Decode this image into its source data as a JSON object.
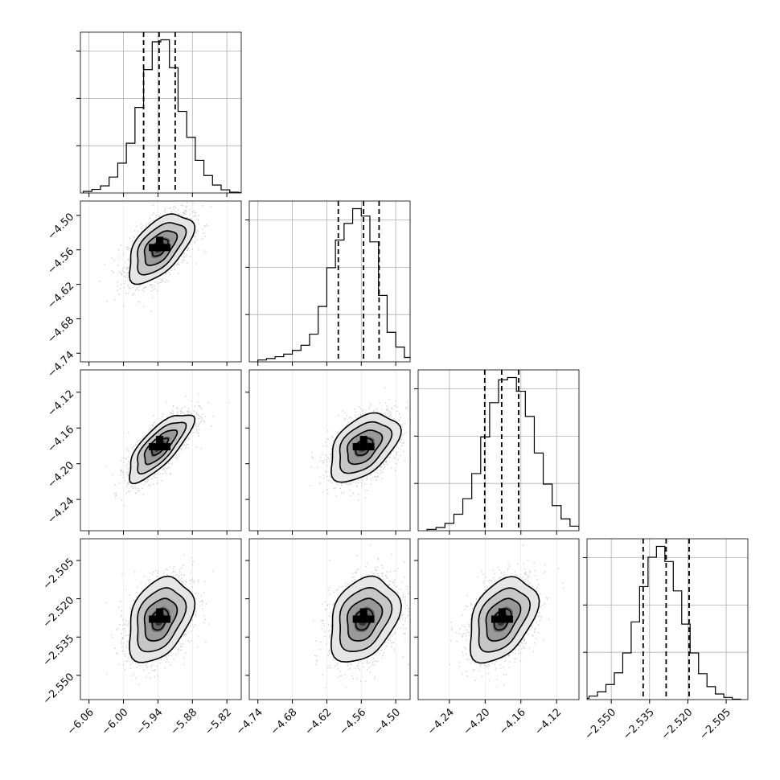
{
  "chart_data": {
    "type": "corner",
    "title": "",
    "grid": true,
    "parameters": [
      {
        "range": [
          -6.075,
          -5.795
        ],
        "ticks": [
          -6.06,
          -6.0,
          -5.94,
          -5.88,
          -5.82
        ],
        "tick_labels": [
          "−6.06",
          "−6.00",
          "−5.94",
          "−5.88",
          "−5.82"
        ],
        "quantiles": [
          -5.965,
          -5.938,
          -5.91
        ],
        "center": -5.937,
        "sigma": 0.028,
        "bins": 19,
        "hist_edges": [
          -6.07,
          -6.055,
          -6.04,
          -6.025,
          -6.01,
          -5.995,
          -5.98,
          -5.965,
          -5.95,
          -5.935,
          -5.92,
          -5.905,
          -5.89,
          -5.875,
          -5.86,
          -5.845,
          -5.83,
          -5.815,
          -5.8,
          -5.785
        ],
        "hist_counts": [
          4,
          9,
          18,
          40,
          75,
          125,
          215,
          310,
          380,
          385,
          315,
          205,
          140,
          82,
          44,
          20,
          8,
          2,
          1
        ]
      },
      {
        "range": [
          -4.755,
          -4.475
        ],
        "ticks": [
          -4.74,
          -4.68,
          -4.62,
          -4.56,
          -4.5
        ],
        "tick_labels": [
          "−4.74",
          "−4.68",
          "−4.62",
          "−4.56",
          "−4.50"
        ],
        "quantiles": [
          -4.6,
          -4.556,
          -4.529
        ],
        "center": -4.556,
        "sigma": 0.03,
        "bins": 19,
        "hist_edges": [
          -4.74,
          -4.725,
          -4.71,
          -4.695,
          -4.68,
          -4.665,
          -4.65,
          -4.635,
          -4.62,
          -4.605,
          -4.59,
          -4.575,
          -4.56,
          -4.545,
          -4.53,
          -4.515,
          -4.5,
          -4.485,
          -4.47,
          -4.455
        ],
        "hist_counts": [
          5,
          9,
          14,
          21,
          31,
          45,
          75,
          150,
          255,
          330,
          375,
          415,
          395,
          325,
          180,
          80,
          40,
          12,
          4
        ]
      },
      {
        "range": [
          -4.275,
          -4.095
        ],
        "ticks": [
          -4.24,
          -4.2,
          -4.16,
          -4.12
        ],
        "tick_labels": [
          "−4.24",
          "−4.20",
          "−4.16",
          "−4.12"
        ],
        "quantiles": [
          -4.2005,
          -4.1815,
          -4.1625
        ],
        "center": -4.181,
        "sigma": 0.019,
        "bins": 19,
        "hist_edges": [
          -4.265,
          -4.255,
          -4.245,
          -4.235,
          -4.225,
          -4.215,
          -4.205,
          -4.195,
          -4.185,
          -4.175,
          -4.165,
          -4.155,
          -4.145,
          -4.135,
          -4.125,
          -4.115,
          -4.105,
          -4.095,
          -4.085,
          -4.075
        ],
        "hist_counts": [
          3,
          7,
          16,
          36,
          70,
          125,
          205,
          280,
          330,
          335,
          305,
          250,
          170,
          102,
          55,
          26,
          10,
          3,
          1
        ]
      },
      {
        "range": [
          -2.5595,
          -2.4965
        ],
        "ticks": [
          -2.55,
          -2.535,
          -2.52,
          -2.505
        ],
        "tick_labels": [
          "−2.550",
          "−2.535",
          "−2.520",
          "−2.505"
        ],
        "quantiles": [
          -2.5375,
          -2.5285,
          -2.5195
        ],
        "center": -2.528,
        "sigma": 0.0083,
        "bins": 19,
        "hist_edges": [
          -2.562,
          -2.5587,
          -2.5554,
          -2.5521,
          -2.5488,
          -2.5455,
          -2.5422,
          -2.5389,
          -2.5356,
          -2.5323,
          -2.529,
          -2.5257,
          -2.5224,
          -2.5191,
          -2.5158,
          -2.5125,
          -2.5092,
          -2.5059,
          -2.5026,
          -2.4993
        ],
        "hist_counts": [
          3,
          8,
          18,
          35,
          62,
          108,
          180,
          262,
          330,
          355,
          320,
          252,
          175,
          108,
          60,
          30,
          13,
          5,
          1
        ]
      }
    ],
    "correlations": {
      "1_0": 0.55,
      "2_0": 0.75,
      "2_1": 0.45,
      "3_0": 0.35,
      "3_1": 0.3,
      "3_2": 0.4
    },
    "contour_levels_sigma": [
      0.5,
      1.0,
      1.5,
      2.0
    ],
    "colors": {
      "line": "#000000",
      "points": "#777777",
      "grid": "#b0b0b0"
    }
  }
}
